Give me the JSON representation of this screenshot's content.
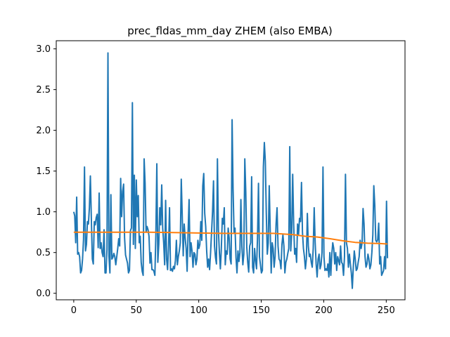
{
  "chart_data": {
    "type": "line",
    "title": "prec_fldas_mm_day ZHEM (also EMBA)",
    "xlabel": "",
    "ylabel": "",
    "xlim": [
      -14,
      265
    ],
    "ylim": [
      -0.08,
      3.1
    ],
    "x_ticks": [
      0,
      50,
      100,
      150,
      200,
      250
    ],
    "y_ticks": [
      0.0,
      0.5,
      1.0,
      1.5,
      2.0,
      2.5,
      3.0
    ],
    "x_tick_labels": [
      "0",
      "50",
      "100",
      "150",
      "200",
      "250"
    ],
    "y_tick_labels": [
      "0.0",
      "0.5",
      "1.0",
      "1.5",
      "2.0",
      "2.5",
      "3.0"
    ],
    "grid": false,
    "legend": "none",
    "series": [
      {
        "color": "#1f77b4",
        "x_start": 0,
        "values": [
          1.0,
          0.95,
          0.62,
          1.18,
          0.48,
          0.5,
          0.45,
          0.25,
          0.28,
          0.42,
          0.66,
          1.55,
          0.52,
          0.6,
          0.88,
          0.85,
          1.05,
          1.44,
          0.92,
          0.42,
          0.36,
          0.88,
          0.84,
          0.93,
          0.97,
          0.56,
          1.23,
          0.55,
          0.62,
          0.5,
          0.45,
          0.78,
          0.25,
          0.25,
          0.54,
          2.95,
          0.46,
          0.25,
          1.21,
          0.42,
          0.44,
          0.49,
          0.45,
          0.35,
          0.45,
          0.55,
          0.67,
          0.58,
          1.41,
          0.94,
          1.25,
          1.34,
          0.68,
          0.47,
          0.42,
          0.37,
          0.25,
          0.28,
          0.77,
          0.8,
          2.34,
          0.6,
          1.45,
          0.55,
          1.39,
          0.94,
          1.2,
          0.62,
          0.7,
          0.38,
          0.27,
          0.22,
          1.65,
          1.35,
          0.75,
          0.82,
          0.78,
          0.7,
          0.37,
          0.5,
          0.29,
          0.29,
          0.27,
          0.22,
          0.72,
          1.59,
          0.38,
          0.6,
          1.05,
          0.84,
          1.33,
          0.8,
          0.62,
          0.35,
          1.14,
          0.42,
          0.29,
          0.58,
          1.05,
          0.28,
          0.3,
          0.27,
          0.33,
          0.3,
          0.4,
          0.65,
          0.35,
          0.45,
          0.52,
          0.62,
          1.4,
          0.95,
          0.46,
          0.85,
          0.68,
          0.55,
          0.27,
          0.75,
          1.15,
          0.45,
          0.62,
          0.52,
          0.32,
          0.5,
          0.48,
          0.35,
          0.42,
          0.65,
          0.55,
          0.6,
          0.88,
          0.65,
          1.32,
          1.47,
          0.98,
          0.82,
          0.52,
          0.32,
          0.42,
          0.29,
          0.5,
          0.75,
          1.0,
          1.38,
          0.58,
          0.44,
          0.36,
          1.65,
          0.78,
          0.5,
          0.3,
          0.55,
          0.92,
          0.85,
          1.05,
          0.35,
          0.52,
          0.48,
          0.8,
          0.68,
          0.42,
          0.36,
          2.13,
          1.28,
          0.75,
          0.8,
          0.44,
          0.25,
          0.52,
          0.39,
          0.5,
          1.15,
          0.58,
          0.35,
          0.48,
          1.65,
          1.25,
          0.57,
          0.38,
          0.26,
          0.58,
          0.62,
          1.43,
          0.32,
          0.25,
          0.55,
          0.4,
          0.3,
          0.68,
          1.35,
          0.45,
          0.35,
          0.25,
          0.28,
          1.55,
          1.85,
          1.62,
          0.98,
          0.48,
          0.62,
          1.32,
          0.78,
          0.25,
          0.62,
          0.55,
          0.32,
          0.45,
          0.85,
          1.05,
          0.58,
          0.42,
          0.4,
          0.3,
          0.6,
          0.72,
          0.58,
          0.25,
          0.38,
          0.42,
          0.49,
          0.55,
          1.8,
          0.52,
          0.75,
          1.46,
          0.85,
          0.48,
          0.55,
          0.38,
          0.85,
          0.72,
          0.92,
          0.88,
          1.36,
          0.75,
          0.55,
          0.45,
          0.3,
          0.42,
          0.98,
          0.58,
          0.45,
          0.48,
          0.38,
          0.32,
          0.55,
          1.05,
          0.62,
          0.36,
          0.2,
          0.42,
          0.48,
          0.3,
          0.35,
          0.5,
          1.55,
          0.45,
          0.28,
          0.3,
          0.28,
          0.36,
          0.2,
          0.5,
          0.22,
          0.48,
          0.62,
          0.55,
          0.36,
          0.5,
          0.28,
          0.45,
          0.4,
          0.35,
          0.58,
          0.38,
          0.36,
          0.22,
          0.45,
          1.46,
          0.62,
          0.55,
          0.32,
          0.48,
          0.36,
          0.25,
          0.06,
          0.32,
          0.52,
          0.42,
          0.28,
          0.3,
          0.38,
          0.45,
          0.65,
          0.55,
          0.62,
          1.04,
          0.85,
          0.45,
          0.32,
          0.36,
          0.48,
          0.42,
          0.3,
          0.35,
          0.5,
          0.72,
          1.32,
          1.08,
          0.65,
          0.63,
          0.66,
          0.86,
          0.36,
          0.45,
          0.22,
          0.25,
          0.28,
          0.45,
          0.3,
          1.13,
          0.43
        ]
      },
      {
        "color": "#ff7f0e",
        "x": [
          0,
          20,
          40,
          60,
          80,
          100,
          120,
          140,
          150,
          160,
          165,
          175,
          185,
          195,
          205,
          215,
          225,
          235,
          245,
          251
        ],
        "values": [
          0.75,
          0.75,
          0.75,
          0.75,
          0.745,
          0.74,
          0.735,
          0.735,
          0.735,
          0.735,
          0.73,
          0.72,
          0.7,
          0.69,
          0.67,
          0.645,
          0.625,
          0.615,
          0.61,
          0.605
        ]
      }
    ]
  }
}
